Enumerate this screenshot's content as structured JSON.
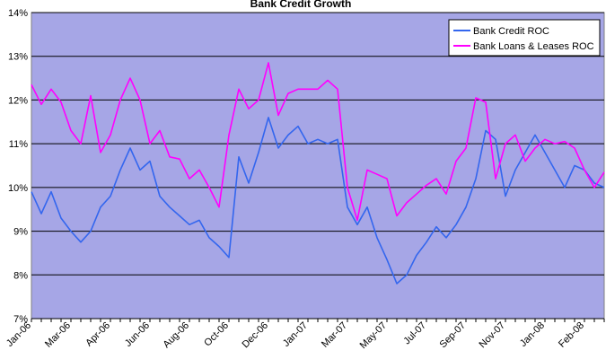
{
  "chart_data": {
    "type": "line",
    "title": "Bank Credit Growth",
    "categories": [
      "Jan-06",
      null,
      null,
      null,
      "Mar-06",
      null,
      null,
      null,
      "Apr-06",
      null,
      null,
      null,
      "Jun-06",
      null,
      null,
      null,
      "Aug-06",
      null,
      null,
      null,
      "Oct-06",
      null,
      null,
      null,
      "Dec-06",
      null,
      null,
      null,
      "Jan-07",
      null,
      null,
      null,
      "Mar-07",
      null,
      null,
      null,
      "May-07",
      null,
      null,
      null,
      "Jul-07",
      null,
      null,
      null,
      "Sep-07",
      null,
      null,
      null,
      "Nov-07",
      null,
      null,
      null,
      "Jan-08",
      null,
      null,
      null,
      "Feb-08",
      null,
      null
    ],
    "series": [
      {
        "name": "Bank Credit ROC",
        "color": "#3366ee",
        "values": [
          9.9,
          9.4,
          9.9,
          9.3,
          9.0,
          8.75,
          9.0,
          9.55,
          9.8,
          10.4,
          10.9,
          10.4,
          10.6,
          9.8,
          9.55,
          9.35,
          9.15,
          9.25,
          8.85,
          8.65,
          8.4,
          10.7,
          10.1,
          10.8,
          11.6,
          10.9,
          11.2,
          11.4,
          11.0,
          11.1,
          11.0,
          11.1,
          9.55,
          9.15,
          9.55,
          8.85,
          8.35,
          7.8,
          8.0,
          8.45,
          8.75,
          9.1,
          8.85,
          9.15,
          9.55,
          10.2,
          11.3,
          11.1,
          9.8,
          10.4,
          10.8,
          11.2,
          10.8,
          10.4,
          10.0,
          10.5,
          10.4,
          10.1,
          10.0
        ]
      },
      {
        "name": "Bank Loans & Leases ROC",
        "color": "#ff00ff",
        "values": [
          12.35,
          11.9,
          12.25,
          11.95,
          11.3,
          11.0,
          12.1,
          10.8,
          11.2,
          12.0,
          12.5,
          12.0,
          11.0,
          11.3,
          10.7,
          10.65,
          10.2,
          10.4,
          10.0,
          9.55,
          11.2,
          12.25,
          11.8,
          12.0,
          12.85,
          11.65,
          12.15,
          12.25,
          12.25,
          12.25,
          12.45,
          12.25,
          10.0,
          9.25,
          10.4,
          10.3,
          10.2,
          9.35,
          9.65,
          9.85,
          10.05,
          10.2,
          9.85,
          10.6,
          10.9,
          12.05,
          11.95,
          10.2,
          11.0,
          11.2,
          10.6,
          10.9,
          11.1,
          11.0,
          11.05,
          10.9,
          10.4,
          10.0,
          10.35
        ]
      }
    ],
    "ylim": [
      7,
      14
    ],
    "yticks": [
      {
        "value": 7,
        "label": "7%"
      },
      {
        "value": 8,
        "label": "8%"
      },
      {
        "value": 9,
        "label": "9%"
      },
      {
        "value": 10,
        "label": "10%"
      },
      {
        "value": 11,
        "label": "11%"
      },
      {
        "value": 12,
        "label": "12%"
      },
      {
        "value": 13,
        "label": "13%"
      },
      {
        "value": 14,
        "label": "14%"
      }
    ],
    "grid": true,
    "legend": "upper right",
    "background": "#a6a6e6"
  }
}
